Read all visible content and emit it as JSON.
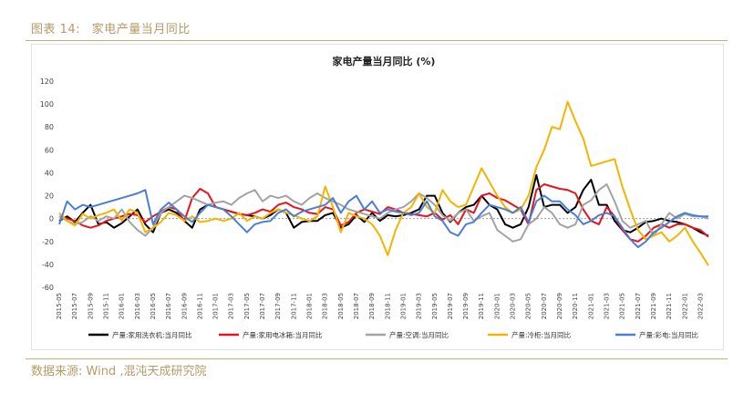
{
  "header": {
    "figure_label": "图表 14:",
    "figure_title": "家电产量当月同比"
  },
  "footer": {
    "source": "数据来源: Wind ,混沌天成研究院"
  },
  "chart_data": {
    "type": "line",
    "title": "家电产量当月同比 (%)",
    "xlabel": "",
    "ylabel": "",
    "ylim": [
      -60,
      120
    ],
    "yticks": [
      -60,
      -40,
      -20,
      0,
      20,
      40,
      60,
      80,
      100,
      120
    ],
    "grid": false,
    "legend_position": "bottom",
    "x_tick_labels": [
      "2015-05",
      "2015-07",
      "2015-09",
      "2015-11",
      "2016-01",
      "2016-03",
      "2016-05",
      "2016-07",
      "2016-09",
      "2016-11",
      "2017-01",
      "2017-03",
      "2017-05",
      "2017-07",
      "2017-09",
      "2017-11",
      "2018-01",
      "2018-03",
      "2018-05",
      "2018-07",
      "2018-09",
      "2018-11",
      "2019-01",
      "2019-03",
      "2019-05",
      "2019-07",
      "2019-09",
      "2019-11",
      "2020-01",
      "2020-03",
      "2020-05",
      "2020-07",
      "2020-09",
      "2020-11",
      "2021-01",
      "2021-03",
      "2021-05",
      "2021-07",
      "2021-09",
      "2021-11",
      "2022-01",
      "2022-03"
    ],
    "x": [
      "2015-05",
      "2015-06",
      "2015-07",
      "2015-08",
      "2015-09",
      "2015-10",
      "2015-11",
      "2015-12",
      "2016-01",
      "2016-02",
      "2016-03",
      "2016-04",
      "2016-05",
      "2016-06",
      "2016-07",
      "2016-08",
      "2016-09",
      "2016-10",
      "2016-11",
      "2016-12",
      "2017-01",
      "2017-02",
      "2017-03",
      "2017-04",
      "2017-05",
      "2017-06",
      "2017-07",
      "2017-08",
      "2017-09",
      "2017-10",
      "2017-11",
      "2017-12",
      "2018-01",
      "2018-02",
      "2018-03",
      "2018-04",
      "2018-05",
      "2018-06",
      "2018-07",
      "2018-08",
      "2018-09",
      "2018-10",
      "2018-11",
      "2018-12",
      "2019-01",
      "2019-02",
      "2019-03",
      "2019-04",
      "2019-05",
      "2019-06",
      "2019-07",
      "2019-08",
      "2019-09",
      "2019-10",
      "2019-11",
      "2019-12",
      "2020-01",
      "2020-02",
      "2020-03",
      "2020-04",
      "2020-05",
      "2020-06",
      "2020-07",
      "2020-08",
      "2020-09",
      "2020-10",
      "2020-11",
      "2020-12",
      "2021-01",
      "2021-02",
      "2021-03",
      "2021-04",
      "2021-05",
      "2021-06",
      "2021-07",
      "2021-08",
      "2021-09",
      "2021-10",
      "2021-11",
      "2021-12",
      "2022-01",
      "2022-02",
      "2022-03",
      "2022-04"
    ],
    "series": [
      {
        "name": "产量:家用洗衣机:当月同比",
        "color": "#000000",
        "values": [
          -2,
          2,
          -3,
          5,
          12,
          -5,
          -3,
          -8,
          -4,
          2,
          8,
          -5,
          -12,
          5,
          8,
          5,
          -2,
          -8,
          8,
          12,
          10,
          8,
          6,
          4,
          3,
          2,
          0,
          3,
          8,
          5,
          -8,
          -3,
          -2,
          -2,
          3,
          5,
          -8,
          -5,
          3,
          -3,
          5,
          -2,
          3,
          2,
          3,
          5,
          8,
          20,
          20,
          5,
          -3,
          5,
          10,
          12,
          20,
          12,
          8,
          -5,
          -8,
          -5,
          10,
          38,
          10,
          12,
          12,
          5,
          10,
          25,
          34,
          12,
          12,
          -2,
          -10,
          -12,
          -8,
          -3,
          -2,
          0,
          -2,
          -3,
          -5,
          -8,
          -12,
          -15
        ]
      },
      {
        "name": "产量:家用电冰箱:当月同比",
        "color": "#e8141c",
        "values": [
          2,
          0,
          -2,
          -6,
          -8,
          -6,
          -2,
          0,
          2,
          4,
          3,
          -3,
          2,
          6,
          10,
          8,
          -2,
          18,
          26,
          22,
          10,
          8,
          6,
          4,
          3,
          5,
          8,
          6,
          12,
          14,
          10,
          8,
          5,
          4,
          10,
          8,
          -6,
          -3,
          5,
          8,
          6,
          4,
          10,
          8,
          5,
          4,
          3,
          2,
          5,
          -1,
          3,
          -5,
          8,
          5,
          20,
          22,
          18,
          16,
          12,
          8,
          -5,
          25,
          30,
          28,
          26,
          25,
          22,
          8,
          -2,
          -5,
          10,
          2,
          -10,
          -18,
          -20,
          -15,
          -8,
          -5,
          -8,
          -5,
          -5,
          -8,
          -10,
          -16
        ]
      },
      {
        "name": "产量:空调:当月同比",
        "color": "#a3a3a3",
        "values": [
          2,
          -2,
          -5,
          -3,
          2,
          -2,
          2,
          0,
          8,
          -3,
          -10,
          -15,
          -8,
          5,
          10,
          15,
          20,
          18,
          15,
          12,
          14,
          15,
          12,
          18,
          22,
          25,
          15,
          20,
          18,
          20,
          15,
          12,
          18,
          22,
          18,
          15,
          12,
          8,
          6,
          4,
          2,
          0,
          5,
          8,
          10,
          15,
          22,
          18,
          12,
          3,
          -2,
          5,
          8,
          -2,
          2,
          5,
          -10,
          -15,
          -20,
          -18,
          -5,
          0,
          10,
          5,
          -5,
          -8,
          -5,
          12,
          16,
          25,
          30,
          15,
          -2,
          -8,
          -5,
          -2,
          -15,
          -5,
          5,
          0,
          4,
          2,
          2,
          0
        ]
      },
      {
        "name": "产量:冷柜:当月同比",
        "color": "#f5b400",
        "values": [
          5,
          -2,
          -6,
          4,
          0,
          3,
          5,
          8,
          -2,
          8,
          5,
          -12,
          -8,
          -3,
          5,
          3,
          -2,
          2,
          -3,
          -2,
          0,
          -2,
          0,
          5,
          -2,
          2,
          0,
          5,
          8,
          5,
          3,
          0,
          -2,
          2,
          28,
          10,
          -12,
          5,
          2,
          0,
          -5,
          -15,
          -32,
          -10,
          5,
          10,
          22,
          10,
          5,
          25,
          15,
          10,
          12,
          28,
          44,
          32,
          20,
          10,
          5,
          8,
          20,
          45,
          60,
          80,
          78,
          102,
          85,
          70,
          46,
          48,
          50,
          52,
          28,
          8,
          -10,
          -18,
          -15,
          -12,
          -20,
          -15,
          -8,
          -20,
          -30,
          -41
        ]
      },
      {
        "name": "产量:彩电:当月同比",
        "color": "#4a7fd6",
        "values": [
          -5,
          15,
          8,
          12,
          10,
          12,
          14,
          16,
          18,
          20,
          22,
          25,
          -5,
          8,
          14,
          8,
          2,
          -3,
          5,
          12,
          10,
          8,
          2,
          -5,
          -12,
          -5,
          -3,
          -2,
          5,
          8,
          2,
          6,
          8,
          10,
          12,
          18,
          5,
          15,
          20,
          8,
          15,
          5,
          8,
          6,
          5,
          3,
          5,
          15,
          2,
          -2,
          -12,
          -15,
          -5,
          -3,
          5,
          12,
          10,
          8,
          5,
          10,
          -3,
          15,
          20,
          15,
          15,
          8,
          3,
          -5,
          -2,
          3,
          5,
          2,
          -8,
          -18,
          -25,
          -20,
          -12,
          -8,
          -3,
          2,
          5,
          3,
          2,
          2
        ]
      }
    ]
  }
}
